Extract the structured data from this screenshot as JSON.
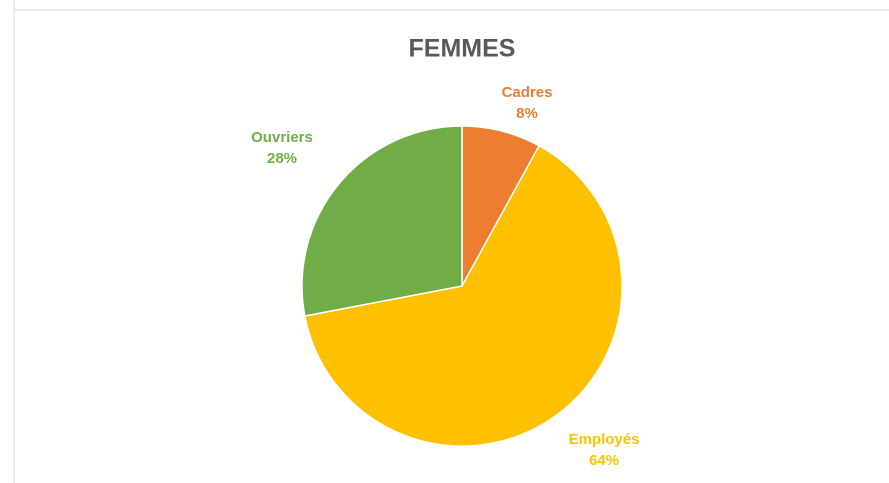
{
  "chart_data": {
    "type": "pie",
    "title": "FEMMES",
    "categories": [
      "Cadres",
      "Employés",
      "Ouvriers"
    ],
    "values": [
      8,
      64,
      28
    ],
    "value_labels": [
      "8%",
      "64%",
      "28%"
    ],
    "colors": [
      "#ED7D31",
      "#FFC000",
      "#70AD47"
    ]
  }
}
